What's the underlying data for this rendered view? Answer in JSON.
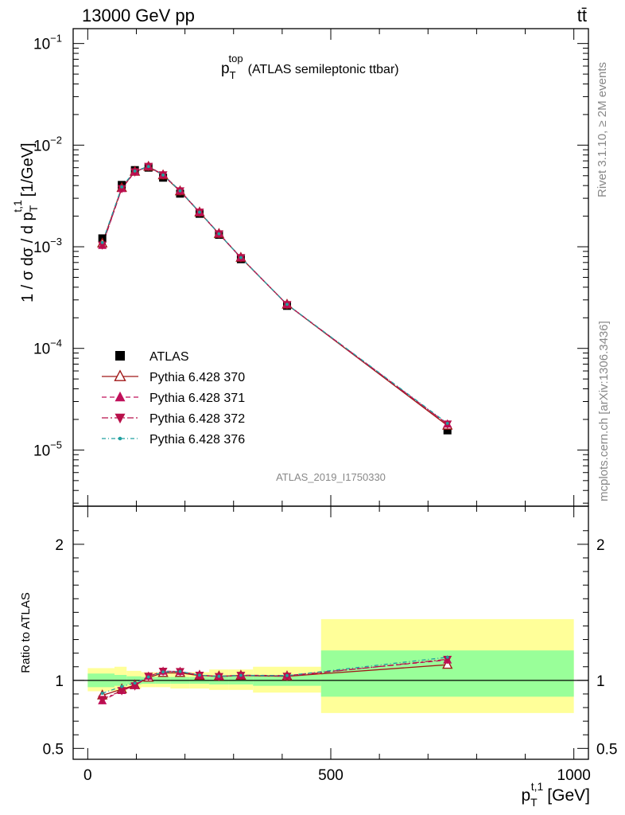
{
  "header": {
    "energy_label": "13000 GeV pp",
    "process_label": "tt̄"
  },
  "side_labels": {
    "rivet": "Rivet 3.1.10, ≥ 2M events",
    "mcplots": "mcplots.cern.ch [arXiv:1306.3436]"
  },
  "analysis_id": "ATLAS_2019_I1750330",
  "chart_data": [
    {
      "type": "scatter",
      "title": {
        "main": "p",
        "sub": "T",
        "sup": "top",
        "rest": "(ATLAS semileptonic ttbar)"
      },
      "ylabel": {
        "main": "1 / σ dσ / d p",
        "sub": "T",
        "sup": "t,1",
        "unit": "[1/GeV]"
      },
      "yscale": "log",
      "xlim": [
        -30,
        1030
      ],
      "ylim": [
        2.8e-06,
        0.14
      ],
      "yticks": [
        {
          "v": 1e-05,
          "b": "10",
          "e": "−5"
        },
        {
          "v": 0.0001,
          "b": "10",
          "e": "−4"
        },
        {
          "v": 0.001,
          "b": "10",
          "e": "−3"
        },
        {
          "v": 0.01,
          "b": "10",
          "e": "−2"
        },
        {
          "v": 0.1,
          "b": "10",
          "e": "−1"
        }
      ],
      "x": [
        30,
        70,
        97,
        125,
        155,
        190,
        230,
        270,
        315,
        410,
        740
      ],
      "series": [
        {
          "name": "ATLAS",
          "color": "#000000",
          "marker": "square",
          "dash": "",
          "values": [
            0.00121,
            0.00406,
            0.00568,
            0.006,
            0.00478,
            0.00333,
            0.00211,
            0.00131,
            0.000754,
            0.000262,
            1.56e-05
          ]
        },
        {
          "name": "Pythia 6.428 370",
          "color": "#a01818",
          "marker": "triangle-open",
          "dash": "",
          "values": [
            0.00108,
            0.0038,
            0.00548,
            0.00614,
            0.00506,
            0.00352,
            0.00218,
            0.00134,
            0.000781,
            0.00027,
            1.74e-05
          ]
        },
        {
          "name": "Pythia 6.428 371",
          "color": "#c0105a",
          "marker": "triangle-up",
          "dash": "6,4",
          "values": [
            0.00103,
            0.00374,
            0.00547,
            0.00618,
            0.00511,
            0.00355,
            0.00219,
            0.00135,
            0.000783,
            0.000271,
            1.8e-05
          ]
        },
        {
          "name": "Pythia 6.428 372",
          "color": "#b8104a",
          "marker": "triangle-down",
          "dash": "8,3,2,3",
          "values": [
            0.00104,
            0.00374,
            0.00546,
            0.00618,
            0.0051,
            0.00355,
            0.00219,
            0.00134,
            0.000782,
            0.00027,
            1.8e-05
          ]
        },
        {
          "name": "Pythia 6.428 376",
          "color": "#20a0a0",
          "marker": "dot",
          "dash": "5,3,1,3",
          "values": [
            0.0011,
            0.00388,
            0.00556,
            0.00616,
            0.00508,
            0.00355,
            0.00219,
            0.00134,
            0.000782,
            0.000271,
            1.83e-05
          ]
        }
      ]
    },
    {
      "type": "scatter",
      "ylabel": "Ratio to ATLAS",
      "xlabel": {
        "main": "p",
        "sub": "T",
        "sup": "t,1",
        "unit": "[GeV]"
      },
      "xlim": [
        -30,
        1030
      ],
      "ylim": [
        0.42,
        2.28
      ],
      "xticks": [
        0,
        500,
        1000
      ],
      "yticks": [
        0.5,
        1,
        2
      ],
      "reference_line": 1,
      "bins": [
        [
          0,
          55,
          0.95,
          1.05,
          0.92,
          1.09
        ],
        [
          55,
          80,
          0.96,
          1.04,
          0.92,
          1.1
        ],
        [
          80,
          110,
          0.97,
          1.03,
          0.94,
          1.07
        ],
        [
          110,
          140,
          0.975,
          1.025,
          0.95,
          1.06
        ],
        [
          140,
          170,
          0.975,
          1.025,
          0.95,
          1.06
        ],
        [
          170,
          210,
          0.975,
          1.025,
          0.94,
          1.06
        ],
        [
          210,
          250,
          0.975,
          1.025,
          0.94,
          1.06
        ],
        [
          250,
          290,
          0.97,
          1.03,
          0.93,
          1.08
        ],
        [
          290,
          340,
          0.97,
          1.03,
          0.93,
          1.08
        ],
        [
          340,
          480,
          0.96,
          1.04,
          0.91,
          1.1
        ],
        [
          480,
          1000,
          0.88,
          1.22,
          0.76,
          1.45
        ]
      ],
      "series": [
        {
          "name": "Pythia 6.428 370",
          "values": [
            0.89,
            0.935,
            0.965,
            1.02,
            1.055,
            1.055,
            1.035,
            1.03,
            1.035,
            1.03,
            1.115
          ]
        },
        {
          "name": "Pythia 6.428 371",
          "values": [
            0.85,
            0.925,
            0.963,
            1.03,
            1.067,
            1.065,
            1.038,
            1.03,
            1.038,
            1.035,
            1.15
          ]
        },
        {
          "name": "Pythia 6.428 372",
          "values": [
            0.86,
            0.925,
            0.96,
            1.03,
            1.067,
            1.065,
            1.038,
            1.028,
            1.037,
            1.03,
            1.155
          ]
        },
        {
          "name": "Pythia 6.428 376",
          "values": [
            0.905,
            0.955,
            0.98,
            1.025,
            1.062,
            1.065,
            1.038,
            1.03,
            1.037,
            1.035,
            1.17
          ]
        }
      ]
    }
  ]
}
